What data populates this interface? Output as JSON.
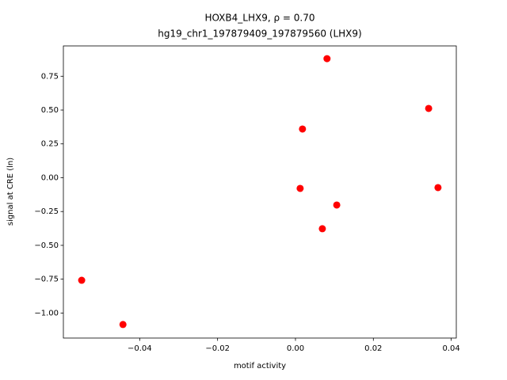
{
  "chart_data": {
    "type": "scatter",
    "title": "HOXB4_LHX9, ρ = 0.70",
    "subtitle": "hg19_chr1_197879409_197879560 (LHX9)",
    "x_label": "motif activity",
    "y_label": "signal at CRE (ln)",
    "color": "#ff0000",
    "x": [
      -0.0549,
      -0.0443,
      0.0012,
      0.0018,
      0.0069,
      0.0081,
      0.0106,
      0.0342,
      0.0366
    ],
    "values": [
      -0.758,
      -1.085,
      -0.079,
      0.36,
      -0.377,
      0.88,
      -0.202,
      0.512,
      -0.073
    ],
    "xlim": [
      -0.0596,
      0.0413
    ],
    "ylim": [
      -1.185,
      0.974
    ],
    "xticks": [
      {
        "value": -0.04,
        "label": "−0.04"
      },
      {
        "value": -0.02,
        "label": "−0.02"
      },
      {
        "value": 0,
        "label": "0.00"
      },
      {
        "value": 0.02,
        "label": "0.02"
      },
      {
        "value": 0.04,
        "label": "0.04"
      }
    ],
    "yticks": [
      {
        "value": -1,
        "label": "−1.00"
      },
      {
        "value": -0.75,
        "label": "−0.75"
      },
      {
        "value": -0.5,
        "label": "−0.50"
      },
      {
        "value": -0.25,
        "label": "−0.25"
      },
      {
        "value": 0,
        "label": "0.00"
      },
      {
        "value": 0.25,
        "label": "0.25"
      },
      {
        "value": 0.5,
        "label": "0.50"
      },
      {
        "value": 0.75,
        "label": "0.75"
      }
    ]
  }
}
